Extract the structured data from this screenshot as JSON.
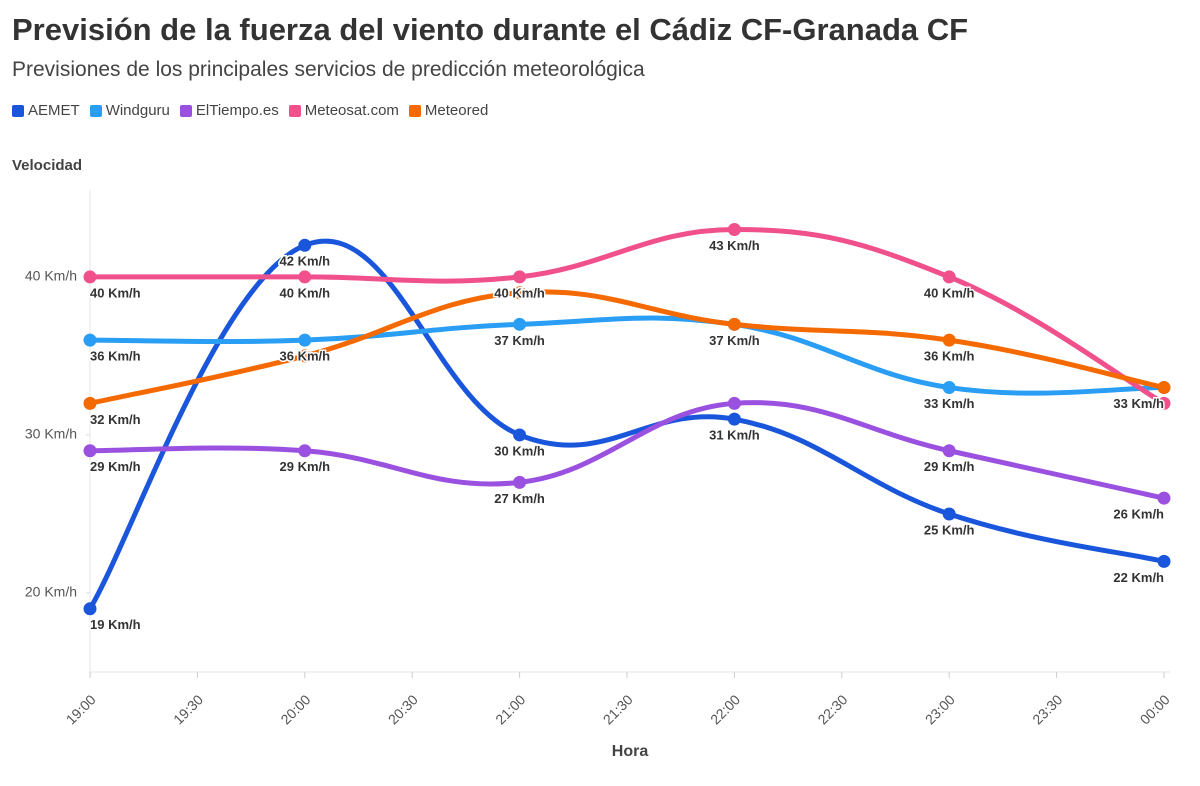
{
  "chart_data": {
    "type": "line",
    "title": "Previsión de la fuerza del viento durante el Cádiz CF-Granada CF",
    "subtitle": "Previsiones de los principales servicios de predicción meteorológica",
    "y_label": "Velocidad",
    "x_label": "Hora",
    "x": [
      "19:00",
      "20:00",
      "21:00",
      "22:00",
      "23:00",
      "00:00"
    ],
    "xticks": [
      "19:00",
      "19:30",
      "20:00",
      "20:30",
      "21:00",
      "21:30",
      "22:00",
      "22:30",
      "23:00",
      "23:30",
      "00:00"
    ],
    "ylim": [
      15,
      45.5
    ],
    "yticks": [
      {
        "value": 20,
        "label": "20 Km/h"
      },
      {
        "value": 30,
        "label": "30 Km/h"
      },
      {
        "value": 40,
        "label": "40 Km/h"
      }
    ],
    "series": [
      {
        "name": "AEMET",
        "color": "#1a56db",
        "values": [
          19,
          42,
          30,
          31,
          25,
          22
        ],
        "value_labels": [
          "19 Km/h",
          "42 Km/h",
          "30 Km/h",
          "31 Km/h",
          "25 Km/h",
          "22 Km/h"
        ]
      },
      {
        "name": "Windguru",
        "color": "#2a9df4",
        "values": [
          36,
          36,
          37,
          37,
          33,
          33
        ],
        "value_labels": [
          "36 Km/h",
          "36 Km/h",
          "37 Km/h",
          "37 Km/h",
          "33 Km/h",
          "33 Km/h"
        ]
      },
      {
        "name": "ElTiempo.es",
        "color": "#9b51e0",
        "values": [
          29,
          29,
          27,
          32,
          29,
          26
        ],
        "value_labels": [
          "29 Km/h",
          "29 Km/h",
          "27 Km/h",
          null,
          "29 Km/h",
          "26 Km/h"
        ]
      },
      {
        "name": "Meteosat.com",
        "color": "#f0508c",
        "values": [
          40,
          40,
          40,
          43,
          40,
          32
        ],
        "value_labels": [
          "40 Km/h",
          "40 Km/h",
          "40 Km/h",
          "43 Km/h",
          "40 Km/h",
          null
        ]
      },
      {
        "name": "Meteored",
        "color": "#f56a00",
        "values": [
          32,
          35,
          39,
          37,
          36,
          33
        ],
        "value_labels": [
          "32 Km/h",
          null,
          null,
          null,
          "36 Km/h",
          null
        ]
      }
    ]
  }
}
